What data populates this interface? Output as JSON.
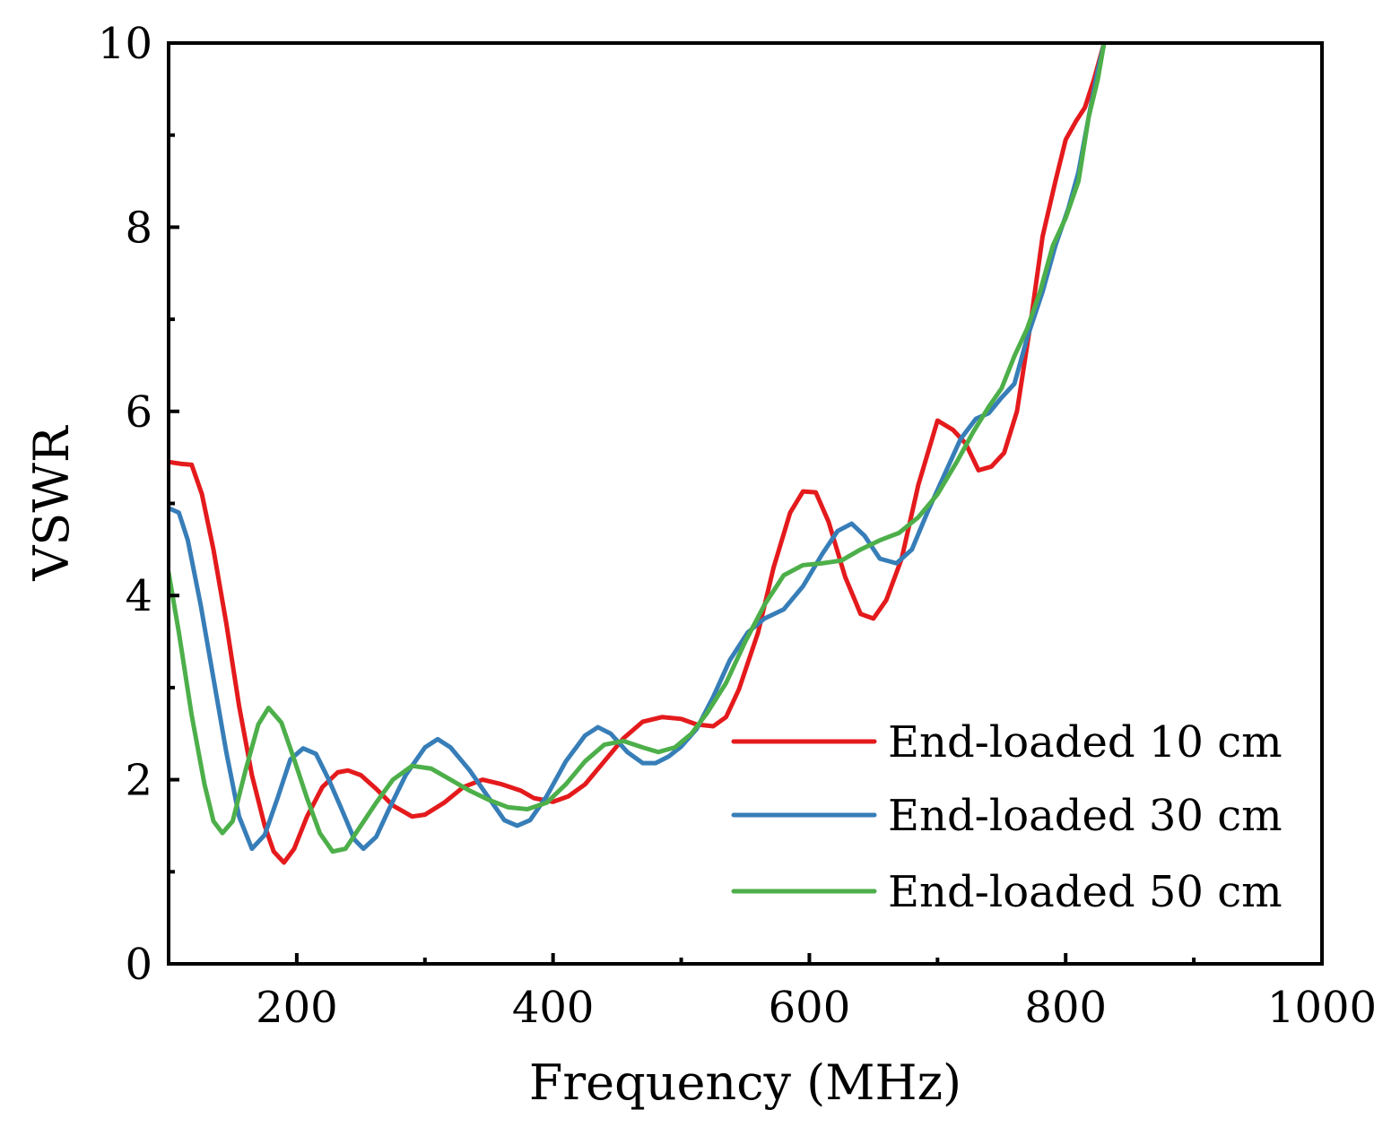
{
  "chart_data": {
    "type": "line",
    "title": "",
    "xlabel": "Frequency (MHz)",
    "ylabel": "VSWR",
    "xlim": [
      100,
      1000
    ],
    "ylim": [
      0,
      10
    ],
    "x_ticks": [
      200,
      400,
      600,
      800,
      1000
    ],
    "x_minor_ticks": [
      300,
      500,
      700,
      900
    ],
    "y_ticks": [
      0,
      2,
      4,
      6,
      8,
      10
    ],
    "y_minor_ticks": [
      1,
      3,
      5,
      7,
      9
    ],
    "grid": false,
    "legend_position": "bottom-right",
    "colors": {
      "red": "#e41a1c",
      "blue": "#377eb8",
      "green": "#4daf4a"
    },
    "series": [
      {
        "name": "End-loaded 10 cm",
        "color": "#e41a1c",
        "points": [
          [
            100,
            5.45
          ],
          [
            110,
            5.43
          ],
          [
            118,
            5.42
          ],
          [
            126,
            5.1
          ],
          [
            135,
            4.5
          ],
          [
            145,
            3.7
          ],
          [
            155,
            2.8
          ],
          [
            165,
            2.05
          ],
          [
            175,
            1.5
          ],
          [
            182,
            1.22
          ],
          [
            190,
            1.1
          ],
          [
            198,
            1.25
          ],
          [
            208,
            1.6
          ],
          [
            220,
            1.92
          ],
          [
            232,
            2.08
          ],
          [
            240,
            2.1
          ],
          [
            250,
            2.05
          ],
          [
            262,
            1.9
          ],
          [
            275,
            1.72
          ],
          [
            290,
            1.6
          ],
          [
            300,
            1.62
          ],
          [
            315,
            1.75
          ],
          [
            330,
            1.92
          ],
          [
            345,
            2.0
          ],
          [
            360,
            1.95
          ],
          [
            375,
            1.88
          ],
          [
            385,
            1.8
          ],
          [
            400,
            1.76
          ],
          [
            412,
            1.82
          ],
          [
            425,
            1.95
          ],
          [
            440,
            2.2
          ],
          [
            455,
            2.45
          ],
          [
            470,
            2.63
          ],
          [
            485,
            2.68
          ],
          [
            500,
            2.66
          ],
          [
            512,
            2.6
          ],
          [
            525,
            2.58
          ],
          [
            535,
            2.68
          ],
          [
            545,
            2.98
          ],
          [
            560,
            3.6
          ],
          [
            572,
            4.3
          ],
          [
            585,
            4.9
          ],
          [
            595,
            5.13
          ],
          [
            605,
            5.12
          ],
          [
            615,
            4.8
          ],
          [
            628,
            4.2
          ],
          [
            640,
            3.8
          ],
          [
            650,
            3.75
          ],
          [
            660,
            3.95
          ],
          [
            672,
            4.4
          ],
          [
            685,
            5.2
          ],
          [
            700,
            5.9
          ],
          [
            712,
            5.8
          ],
          [
            722,
            5.65
          ],
          [
            732,
            5.36
          ],
          [
            742,
            5.4
          ],
          [
            752,
            5.55
          ],
          [
            762,
            6.0
          ],
          [
            772,
            6.9
          ],
          [
            782,
            7.9
          ],
          [
            792,
            8.5
          ],
          [
            800,
            8.95
          ],
          [
            808,
            9.15
          ],
          [
            815,
            9.3
          ],
          [
            822,
            9.6
          ],
          [
            830,
            10.0
          ]
        ]
      },
      {
        "name": "End-loaded 30 cm",
        "color": "#377eb8",
        "points": [
          [
            100,
            4.95
          ],
          [
            108,
            4.9
          ],
          [
            115,
            4.6
          ],
          [
            125,
            3.9
          ],
          [
            135,
            3.1
          ],
          [
            145,
            2.3
          ],
          [
            155,
            1.6
          ],
          [
            165,
            1.25
          ],
          [
            175,
            1.4
          ],
          [
            185,
            1.8
          ],
          [
            195,
            2.22
          ],
          [
            205,
            2.34
          ],
          [
            215,
            2.28
          ],
          [
            225,
            2.0
          ],
          [
            235,
            1.68
          ],
          [
            245,
            1.35
          ],
          [
            252,
            1.25
          ],
          [
            262,
            1.38
          ],
          [
            272,
            1.68
          ],
          [
            285,
            2.05
          ],
          [
            300,
            2.35
          ],
          [
            310,
            2.44
          ],
          [
            320,
            2.35
          ],
          [
            335,
            2.1
          ],
          [
            350,
            1.8
          ],
          [
            362,
            1.56
          ],
          [
            372,
            1.5
          ],
          [
            382,
            1.56
          ],
          [
            395,
            1.82
          ],
          [
            410,
            2.2
          ],
          [
            425,
            2.48
          ],
          [
            435,
            2.57
          ],
          [
            445,
            2.5
          ],
          [
            458,
            2.3
          ],
          [
            470,
            2.18
          ],
          [
            480,
            2.18
          ],
          [
            490,
            2.25
          ],
          [
            500,
            2.36
          ],
          [
            512,
            2.55
          ],
          [
            525,
            2.9
          ],
          [
            538,
            3.3
          ],
          [
            552,
            3.6
          ],
          [
            565,
            3.75
          ],
          [
            580,
            3.85
          ],
          [
            595,
            4.1
          ],
          [
            610,
            4.45
          ],
          [
            622,
            4.7
          ],
          [
            633,
            4.78
          ],
          [
            643,
            4.65
          ],
          [
            655,
            4.4
          ],
          [
            668,
            4.35
          ],
          [
            680,
            4.5
          ],
          [
            692,
            4.9
          ],
          [
            705,
            5.3
          ],
          [
            718,
            5.7
          ],
          [
            730,
            5.92
          ],
          [
            740,
            5.98
          ],
          [
            750,
            6.15
          ],
          [
            760,
            6.3
          ],
          [
            770,
            6.8
          ],
          [
            782,
            7.3
          ],
          [
            792,
            7.8
          ],
          [
            802,
            8.2
          ],
          [
            810,
            8.6
          ],
          [
            818,
            9.2
          ],
          [
            825,
            9.7
          ],
          [
            830,
            10.0
          ]
        ]
      },
      {
        "name": "End-loaded 50 cm",
        "color": "#4daf4a",
        "points": [
          [
            100,
            4.25
          ],
          [
            108,
            3.6
          ],
          [
            118,
            2.7
          ],
          [
            128,
            1.95
          ],
          [
            135,
            1.55
          ],
          [
            142,
            1.42
          ],
          [
            150,
            1.55
          ],
          [
            160,
            2.1
          ],
          [
            170,
            2.6
          ],
          [
            178,
            2.78
          ],
          [
            188,
            2.62
          ],
          [
            198,
            2.22
          ],
          [
            208,
            1.8
          ],
          [
            218,
            1.42
          ],
          [
            228,
            1.22
          ],
          [
            238,
            1.25
          ],
          [
            250,
            1.5
          ],
          [
            262,
            1.75
          ],
          [
            275,
            2.0
          ],
          [
            290,
            2.15
          ],
          [
            305,
            2.12
          ],
          [
            320,
            2.0
          ],
          [
            335,
            1.88
          ],
          [
            350,
            1.78
          ],
          [
            365,
            1.7
          ],
          [
            380,
            1.68
          ],
          [
            395,
            1.75
          ],
          [
            410,
            1.95
          ],
          [
            425,
            2.2
          ],
          [
            440,
            2.38
          ],
          [
            455,
            2.42
          ],
          [
            470,
            2.35
          ],
          [
            482,
            2.3
          ],
          [
            495,
            2.35
          ],
          [
            508,
            2.5
          ],
          [
            520,
            2.72
          ],
          [
            535,
            3.05
          ],
          [
            550,
            3.5
          ],
          [
            565,
            3.9
          ],
          [
            580,
            4.22
          ],
          [
            595,
            4.33
          ],
          [
            610,
            4.35
          ],
          [
            625,
            4.38
          ],
          [
            640,
            4.5
          ],
          [
            655,
            4.6
          ],
          [
            670,
            4.68
          ],
          [
            685,
            4.85
          ],
          [
            700,
            5.1
          ],
          [
            715,
            5.45
          ],
          [
            728,
            5.78
          ],
          [
            740,
            6.05
          ],
          [
            750,
            6.25
          ],
          [
            760,
            6.6
          ],
          [
            770,
            6.9
          ],
          [
            780,
            7.3
          ],
          [
            790,
            7.8
          ],
          [
            800,
            8.1
          ],
          [
            810,
            8.5
          ],
          [
            818,
            9.2
          ],
          [
            825,
            9.6
          ],
          [
            830,
            10.0
          ]
        ]
      }
    ]
  }
}
